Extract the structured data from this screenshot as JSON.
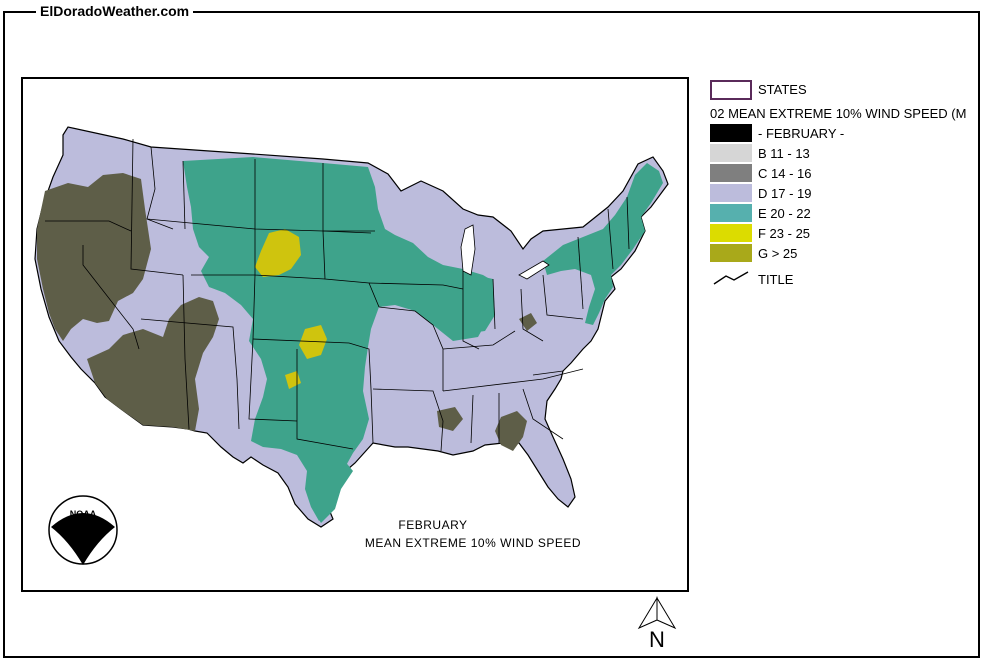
{
  "site": {
    "label": "ElDoradoWeather.com"
  },
  "legend": {
    "states_label": "STATES",
    "heading": "02 MEAN EXTREME 10% WIND SPEED (M",
    "items": [
      {
        "code": "A",
        "label": "- FEBRUARY -",
        "color": "#000000"
      },
      {
        "code": "B",
        "label": "B 11 - 13",
        "color": "#d6d6d6"
      },
      {
        "code": "C",
        "label": "C 14 - 16",
        "color": "#7f7f7f"
      },
      {
        "code": "D",
        "label": "D 17 - 19",
        "color": "#bcbcdc"
      },
      {
        "code": "E",
        "label": "E 20 - 22",
        "color": "#56b0ae"
      },
      {
        "code": "F",
        "label": "F 23 - 25",
        "color": "#dcdc00"
      },
      {
        "code": "G",
        "label": "G > 25",
        "color": "#a9a91a"
      }
    ],
    "title_label": "TITLE"
  },
  "map": {
    "caption_line1": "FEBRUARY",
    "caption_line2": "MEAN EXTREME 10% WIND SPEED",
    "logo_text": "NOAA",
    "colors": {
      "land_d": "#bcbcdc",
      "zone_e": "#3ea38b",
      "zone_f": "#cfc40e",
      "zone_dark": "#5e5e48"
    }
  },
  "north_arrow": {
    "label": "N"
  }
}
